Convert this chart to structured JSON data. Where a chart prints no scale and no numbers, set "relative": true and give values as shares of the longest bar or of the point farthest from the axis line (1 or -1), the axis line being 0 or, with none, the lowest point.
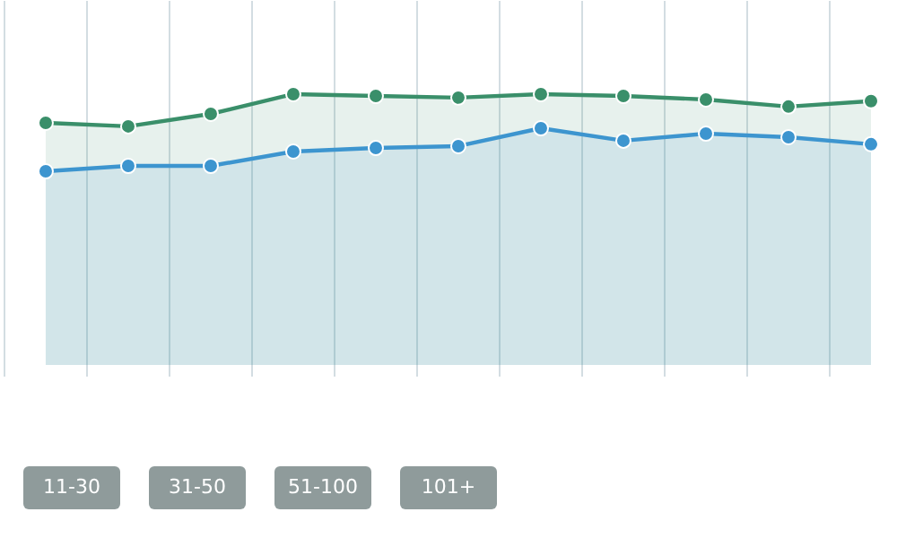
{
  "chart_data": {
    "type": "area",
    "relative": true,
    "categories": [
      null,
      null,
      null,
      null,
      null,
      null,
      null,
      null,
      null,
      null,
      null
    ],
    "series": [
      {
        "color": "#3a8f6a",
        "values": [
          0.894,
          0.881,
          0.927,
          1,
          0.993,
          0.987,
          1,
          0.993,
          0.98,
          0.954,
          0.974
        ]
      },
      {
        "color": "#3d95cf",
        "values": [
          0.715,
          0.735,
          0.735,
          0.788,
          0.801,
          0.808,
          0.874,
          0.828,
          0.854,
          0.841,
          0.815
        ]
      }
    ],
    "marker": "circle",
    "grid": "x",
    "annotations": [
      "11-30",
      "31-50",
      "51-100",
      "101+"
    ]
  }
}
